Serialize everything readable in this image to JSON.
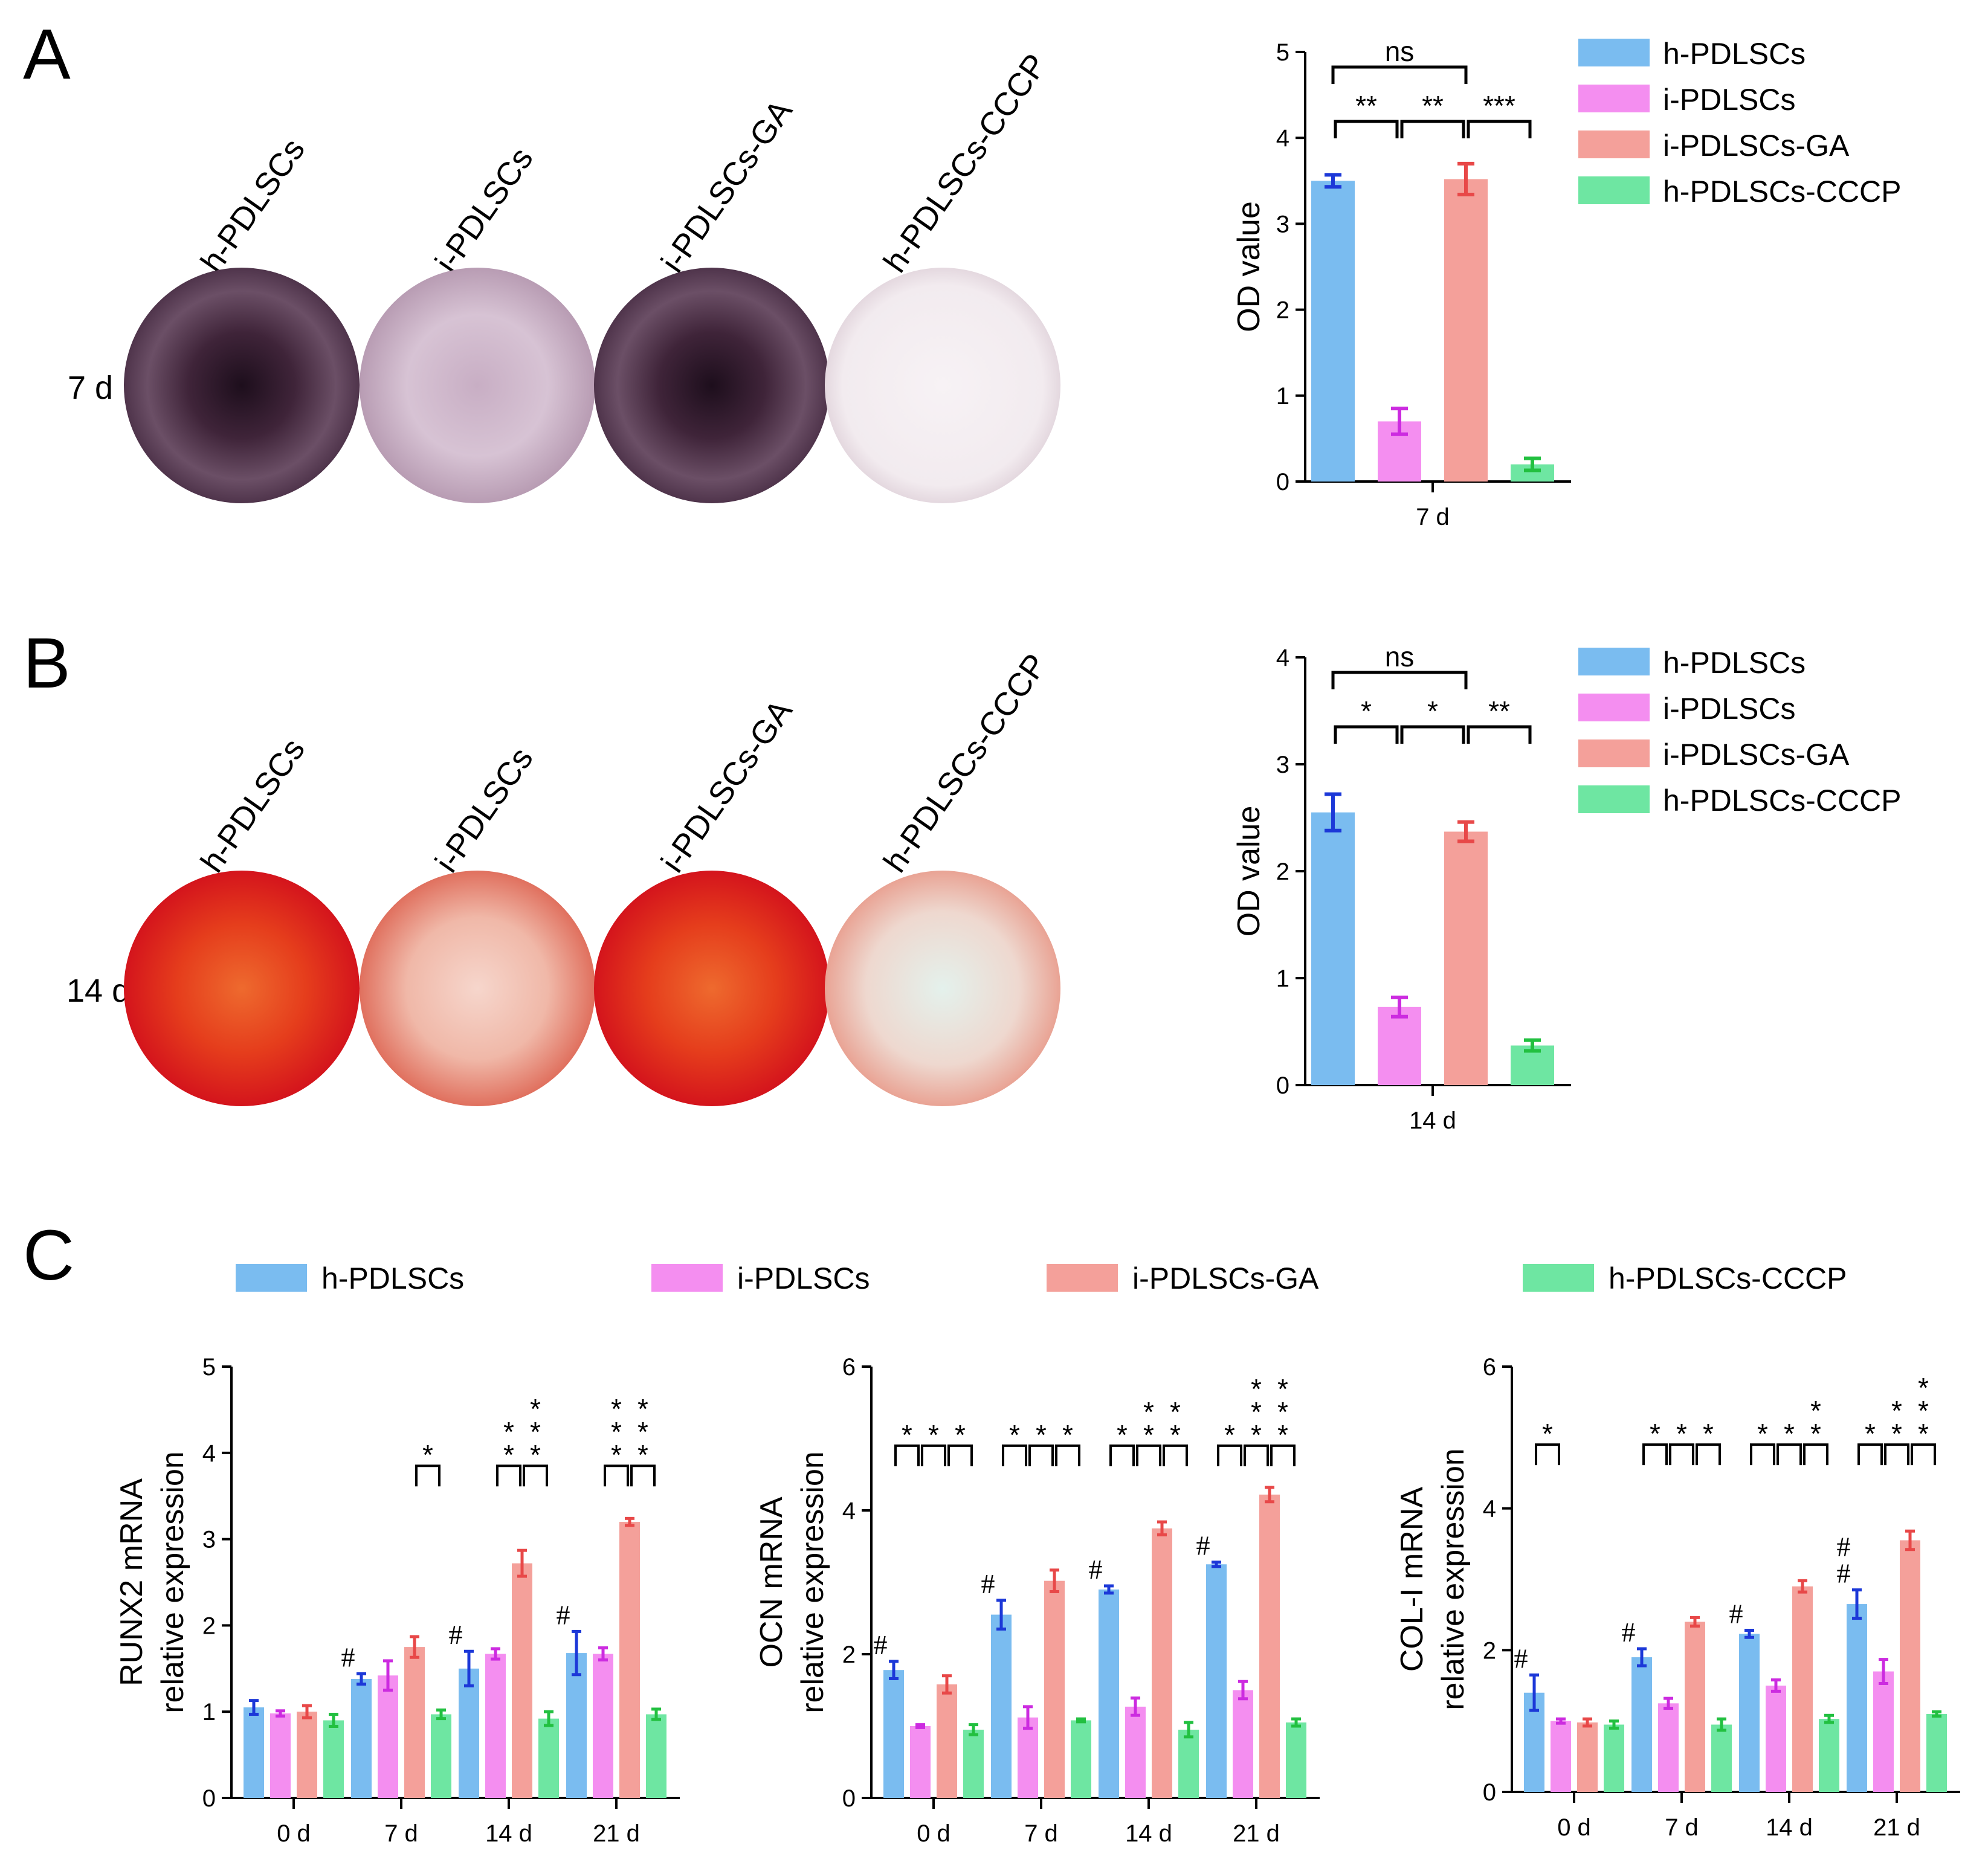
{
  "colors": {
    "h-PDLSCs": "#7abcf0",
    "i-PDLSCs": "#f48ef0",
    "i-PDLSCs-GA": "#f4a09a",
    "h-PDLSCs-CCCP": "#6ee6a2",
    "err": {
      "h-PDLSCs": "#1c38d8",
      "i-PDLSCs": "#cc2be0",
      "i-PDLSCs-GA": "#e84848",
      "h-PDLSCs-CCCP": "#22c040"
    }
  },
  "panels": {
    "A": {
      "letter": "A",
      "time_label": "7 d",
      "wells": [
        "h-PDLSCs",
        "i-PDLSCs",
        "i-PDLSCs-GA",
        "h-PDLSCs-CCCP"
      ],
      "stain": "alp-purple",
      "well_intensity": [
        0.95,
        0.45,
        0.95,
        0.06
      ]
    },
    "B": {
      "letter": "B",
      "time_label": "14 d",
      "wells": [
        "h-PDLSCs",
        "i-PDLSCs",
        "i-PDLSCs-GA",
        "h-PDLSCs-CCCP"
      ],
      "stain": "alizarin-red",
      "well_intensity": [
        0.95,
        0.35,
        0.92,
        0.18
      ]
    },
    "C": {
      "letter": "C"
    }
  },
  "legend_labels": [
    "h-PDLSCs",
    "i-PDLSCs",
    "i-PDLSCs-GA",
    "h-PDLSCs-CCCP"
  ],
  "chart_data": [
    {
      "id": "A-od",
      "type": "bar",
      "ylabel": "OD value",
      "ylim": [
        0,
        5
      ],
      "yticks": [
        "0",
        "1",
        "2",
        "3",
        "4",
        "5"
      ],
      "categories": [
        "7 d"
      ],
      "series": [
        {
          "name": "h-PDLSCs",
          "values": [
            3.5
          ],
          "err": [
            0.07
          ]
        },
        {
          "name": "i-PDLSCs",
          "values": [
            0.7
          ],
          "err": [
            0.15
          ]
        },
        {
          "name": "i-PDLSCs-GA",
          "values": [
            3.52
          ],
          "err": [
            0.18
          ]
        },
        {
          "name": "h-PDLSCs-CCCP",
          "values": [
            0.2
          ],
          "err": [
            0.07
          ]
        }
      ],
      "comparisons": [
        {
          "from": 0,
          "to": 2,
          "label": "ns",
          "level": 2
        },
        {
          "from": 0,
          "to": 1,
          "label": "**",
          "level": 1
        },
        {
          "from": 1,
          "to": 2,
          "label": "**",
          "level": 1
        },
        {
          "from": 2,
          "to": 3,
          "label": "***",
          "level": 1
        }
      ],
      "legend": [
        "h-PDLSCs",
        "i-PDLSCs",
        "i-PDLSCs-GA",
        "h-PDLSCs-CCCP"
      ]
    },
    {
      "id": "B-od",
      "type": "bar",
      "ylabel": "OD value",
      "ylim": [
        0,
        4
      ],
      "yticks": [
        "0",
        "1",
        "2",
        "3",
        "4"
      ],
      "categories": [
        "14 d"
      ],
      "series": [
        {
          "name": "h-PDLSCs",
          "values": [
            2.55
          ],
          "err": [
            0.17
          ]
        },
        {
          "name": "i-PDLSCs",
          "values": [
            0.73
          ],
          "err": [
            0.09
          ]
        },
        {
          "name": "i-PDLSCs-GA",
          "values": [
            2.37
          ],
          "err": [
            0.09
          ]
        },
        {
          "name": "h-PDLSCs-CCCP",
          "values": [
            0.37
          ],
          "err": [
            0.05
          ]
        }
      ],
      "comparisons": [
        {
          "from": 0,
          "to": 2,
          "label": "ns",
          "level": 2
        },
        {
          "from": 0,
          "to": 1,
          "label": "*",
          "level": 1
        },
        {
          "from": 1,
          "to": 2,
          "label": "*",
          "level": 1
        },
        {
          "from": 2,
          "to": 3,
          "label": "**",
          "level": 1
        }
      ],
      "legend": [
        "h-PDLSCs",
        "i-PDLSCs",
        "i-PDLSCs-GA",
        "h-PDLSCs-CCCP"
      ]
    },
    {
      "id": "C-runx2",
      "type": "bar",
      "ylabel": [
        "RUNX2 mRNA",
        "relative expression"
      ],
      "ylim": [
        0,
        5
      ],
      "yticks": [
        "0",
        "1",
        "2",
        "3",
        "4",
        "5"
      ],
      "categories": [
        "0 d",
        "7 d",
        "14 d",
        "21 d"
      ],
      "series": [
        {
          "name": "h-PDLSCs",
          "values": [
            1.05,
            1.38,
            1.5,
            1.68
          ],
          "err": [
            0.08,
            0.06,
            0.2,
            0.25
          ]
        },
        {
          "name": "i-PDLSCs",
          "values": [
            0.98,
            1.42,
            1.67,
            1.67
          ],
          "err": [
            0.03,
            0.17,
            0.06,
            0.07
          ]
        },
        {
          "name": "i-PDLSCs-GA",
          "values": [
            1.0,
            1.75,
            2.72,
            3.2
          ],
          "err": [
            0.07,
            0.12,
            0.15,
            0.04
          ]
        },
        {
          "name": "h-PDLSCs-CCCP",
          "values": [
            0.9,
            0.97,
            0.92,
            0.97
          ],
          "err": [
            0.07,
            0.05,
            0.08,
            0.06
          ]
        }
      ],
      "hash": [
        [],
        [
          0
        ],
        [
          0
        ],
        [
          0
        ]
      ],
      "brackets": [
        [],
        [
          {
            "from": 2,
            "to": 3,
            "label": "*"
          }
        ],
        [
          {
            "from": 1,
            "to": 2,
            "label": "**"
          },
          {
            "from": 2,
            "to": 3,
            "label": "***"
          }
        ],
        [
          {
            "from": 1,
            "to": 2,
            "label": "***"
          },
          {
            "from": 2,
            "to": 3,
            "label": "***"
          }
        ]
      ]
    },
    {
      "id": "C-ocn",
      "type": "bar",
      "ylabel": [
        "OCN mRNA",
        "relative expression"
      ],
      "ylim": [
        0,
        6
      ],
      "yticks": [
        "0",
        "2",
        "4",
        "6"
      ],
      "categories": [
        "0 d",
        "7 d",
        "14 d",
        "21 d"
      ],
      "series": [
        {
          "name": "h-PDLSCs",
          "values": [
            1.78,
            2.55,
            2.9,
            3.25
          ],
          "err": [
            0.12,
            0.2,
            0.05,
            0.03
          ]
        },
        {
          "name": "i-PDLSCs",
          "values": [
            1.0,
            1.12,
            1.27,
            1.5
          ],
          "err": [
            0.02,
            0.15,
            0.12,
            0.12
          ]
        },
        {
          "name": "i-PDLSCs-GA",
          "values": [
            1.58,
            3.02,
            3.75,
            4.22
          ],
          "err": [
            0.12,
            0.15,
            0.09,
            0.1
          ]
        },
        {
          "name": "h-PDLSCs-CCCP",
          "values": [
            0.95,
            1.08,
            0.95,
            1.05
          ],
          "err": [
            0.07,
            0.02,
            0.1,
            0.05
          ]
        }
      ],
      "hash": [
        [
          0
        ],
        [
          0
        ],
        [
          0
        ],
        [
          0
        ]
      ],
      "brackets": [
        [
          {
            "from": 0,
            "to": 1,
            "label": "*"
          },
          {
            "from": 1,
            "to": 2,
            "label": "*"
          },
          {
            "from": 2,
            "to": 3,
            "label": "*"
          }
        ],
        [
          {
            "from": 0,
            "to": 1,
            "label": "*"
          },
          {
            "from": 1,
            "to": 2,
            "label": "*"
          },
          {
            "from": 2,
            "to": 3,
            "label": "*"
          }
        ],
        [
          {
            "from": 0,
            "to": 1,
            "label": "*"
          },
          {
            "from": 1,
            "to": 2,
            "label": "**"
          },
          {
            "from": 2,
            "to": 3,
            "label": "**"
          }
        ],
        [
          {
            "from": 0,
            "to": 1,
            "label": "*"
          },
          {
            "from": 1,
            "to": 2,
            "label": "***"
          },
          {
            "from": 2,
            "to": 3,
            "label": "***"
          }
        ]
      ]
    },
    {
      "id": "C-col1",
      "type": "bar",
      "ylabel": [
        "COL-I mRNA",
        "relative expression"
      ],
      "ylim": [
        0,
        6
      ],
      "yticks": [
        "0",
        "2",
        "4",
        "6"
      ],
      "categories": [
        "0 d",
        "7 d",
        "14 d",
        "21 d"
      ],
      "series": [
        {
          "name": "h-PDLSCs",
          "values": [
            1.4,
            1.9,
            2.23,
            2.65
          ],
          "err": [
            0.25,
            0.12,
            0.05,
            0.2
          ]
        },
        {
          "name": "i-PDLSCs",
          "values": [
            1.0,
            1.25,
            1.5,
            1.7
          ],
          "err": [
            0.03,
            0.07,
            0.08,
            0.17
          ]
        },
        {
          "name": "i-PDLSCs-GA",
          "values": [
            0.98,
            2.4,
            2.9,
            3.55
          ],
          "err": [
            0.05,
            0.06,
            0.08,
            0.13
          ]
        },
        {
          "name": "h-PDLSCs-CCCP",
          "values": [
            0.95,
            0.95,
            1.03,
            1.1
          ],
          "err": [
            0.05,
            0.08,
            0.05,
            0.03
          ]
        }
      ],
      "hash": [
        [
          0
        ],
        [
          0
        ],
        [
          0
        ],
        [
          0,
          0
        ]
      ],
      "brackets": [
        [
          {
            "from": 0,
            "to": 1,
            "label": "*"
          }
        ],
        [
          {
            "from": 0,
            "to": 1,
            "label": "*"
          },
          {
            "from": 1,
            "to": 2,
            "label": "*"
          },
          {
            "from": 2,
            "to": 3,
            "label": "*"
          }
        ],
        [
          {
            "from": 0,
            "to": 1,
            "label": "*"
          },
          {
            "from": 1,
            "to": 2,
            "label": "*"
          },
          {
            "from": 2,
            "to": 3,
            "label": "**"
          }
        ],
        [
          {
            "from": 0,
            "to": 1,
            "label": "*"
          },
          {
            "from": 1,
            "to": 2,
            "label": "**"
          },
          {
            "from": 2,
            "to": 3,
            "label": "***"
          }
        ]
      ]
    }
  ]
}
